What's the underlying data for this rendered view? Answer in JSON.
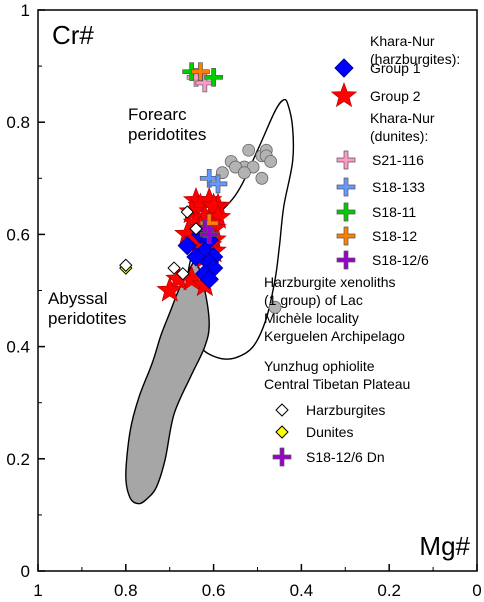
{
  "chart_data": {
    "type": "scatter",
    "title": "",
    "xlabel": "Mg#",
    "ylabel": "Cr#",
    "xlim": [
      1,
      0
    ],
    "ylim": [
      0,
      1
    ],
    "x_ticks": [
      1,
      0.8,
      0.6,
      0.4,
      0.2,
      0
    ],
    "y_ticks": [
      0,
      0.2,
      0.4,
      0.6,
      0.8,
      1
    ],
    "x_tick_labels": [
      "1",
      "0.8",
      "0.6",
      "0.4",
      "0.2",
      "0"
    ],
    "y_tick_labels": [
      "0",
      "0.2",
      "0.4",
      "0.6",
      "0.8",
      "1"
    ],
    "grid": false,
    "legend_position": "right",
    "fields": [
      {
        "name": "Forearc peridotites",
        "label_lines": [
          "Forearc",
          "peridotites"
        ],
        "fill": "#ffffff",
        "outline": [
          [
            0.63,
            0.6
          ],
          [
            0.55,
            0.67
          ],
          [
            0.5,
            0.75
          ],
          [
            0.46,
            0.82
          ],
          [
            0.44,
            0.84
          ],
          [
            0.43,
            0.83
          ],
          [
            0.42,
            0.79
          ],
          [
            0.42,
            0.73
          ],
          [
            0.44,
            0.65
          ],
          [
            0.45,
            0.58
          ],
          [
            0.46,
            0.52
          ],
          [
            0.48,
            0.45
          ],
          [
            0.51,
            0.4
          ],
          [
            0.55,
            0.38
          ],
          [
            0.59,
            0.38
          ],
          [
            0.63,
            0.4
          ],
          [
            0.65,
            0.45
          ],
          [
            0.66,
            0.52
          ]
        ]
      },
      {
        "name": "Abyssal peridotites",
        "label_lines": [
          "Abyssal",
          "peridotites"
        ],
        "fill": "#a6a6a6",
        "outline": [
          [
            0.72,
            0.42
          ],
          [
            0.7,
            0.46
          ],
          [
            0.68,
            0.5
          ],
          [
            0.66,
            0.53
          ],
          [
            0.64,
            0.55
          ],
          [
            0.62,
            0.5
          ],
          [
            0.61,
            0.44
          ],
          [
            0.62,
            0.4
          ],
          [
            0.65,
            0.35
          ],
          [
            0.69,
            0.28
          ],
          [
            0.71,
            0.2
          ],
          [
            0.73,
            0.15
          ],
          [
            0.75,
            0.13
          ],
          [
            0.77,
            0.12
          ],
          [
            0.79,
            0.13
          ],
          [
            0.8,
            0.17
          ],
          [
            0.79,
            0.25
          ],
          [
            0.77,
            0.31
          ],
          [
            0.74,
            0.37
          ]
        ]
      }
    ],
    "legend_groups": [
      {
        "heading": [
          "Khara-Nur",
          "(harzburgites):"
        ],
        "entries": [
          {
            "label": "Group 1",
            "marker": "diamond",
            "color": "#0000ff"
          },
          {
            "label": "Group 2",
            "marker": "star",
            "color": "#ff0000"
          }
        ]
      },
      {
        "heading": [
          "Khara-Nur",
          "(dunites):"
        ],
        "entries": [
          {
            "label": "S21-116",
            "marker": "cross",
            "color": "#ff99cc"
          },
          {
            "label": "S18-133",
            "marker": "cross",
            "color": "#6699ff"
          },
          {
            "label": "S18-11",
            "marker": "cross",
            "color": "#00cc00"
          },
          {
            "label": "S18-12",
            "marker": "cross",
            "color": "#ff8000"
          },
          {
            "label": "S18-12/6",
            "marker": "cross",
            "color": "#9900cc"
          }
        ]
      },
      {
        "heading": [
          "Harzburgite xenoliths",
          "(1 group) of Lac",
          "Michèle locality",
          "Kerguelen Archipelago"
        ],
        "entries": []
      },
      {
        "heading": [
          "Yunzhug ophiolite",
          "Central Tibetan Plateau"
        ],
        "entries": [
          {
            "label": "Harzburgites",
            "marker": "diamond",
            "color": "#ffffff"
          },
          {
            "label": "Dunites",
            "marker": "diamond",
            "color": "#ffff00"
          },
          {
            "label": "S18-12/6 Dn",
            "marker": "cross",
            "color": "#9900cc"
          }
        ]
      }
    ],
    "series": [
      {
        "marker": "circle",
        "color": "#b3b3b3",
        "points": [
          [
            0.52,
            0.75
          ],
          [
            0.49,
            0.74
          ],
          [
            0.48,
            0.75
          ],
          [
            0.48,
            0.74
          ],
          [
            0.47,
            0.73
          ],
          [
            0.53,
            0.72
          ],
          [
            0.56,
            0.73
          ],
          [
            0.55,
            0.72
          ],
          [
            0.51,
            0.72
          ],
          [
            0.53,
            0.71
          ],
          [
            0.58,
            0.71
          ],
          [
            0.49,
            0.7
          ],
          [
            0.46,
            0.47
          ]
        ]
      },
      {
        "marker": "star",
        "color": "#ff0000",
        "points": [
          [
            0.64,
            0.66
          ],
          [
            0.61,
            0.66
          ],
          [
            0.59,
            0.65
          ],
          [
            0.63,
            0.65
          ],
          [
            0.6,
            0.65
          ],
          [
            0.65,
            0.64
          ],
          [
            0.62,
            0.63
          ],
          [
            0.59,
            0.63
          ],
          [
            0.64,
            0.62
          ],
          [
            0.61,
            0.62
          ],
          [
            0.6,
            0.61
          ],
          [
            0.63,
            0.61
          ],
          [
            0.66,
            0.6
          ],
          [
            0.62,
            0.6
          ],
          [
            0.6,
            0.59
          ],
          [
            0.64,
            0.59
          ],
          [
            0.61,
            0.58
          ],
          [
            0.63,
            0.57
          ],
          [
            0.6,
            0.57
          ],
          [
            0.62,
            0.56
          ],
          [
            0.65,
            0.52
          ],
          [
            0.68,
            0.52
          ],
          [
            0.62,
            0.51
          ],
          [
            0.7,
            0.5
          ]
        ]
      },
      {
        "marker": "diamond",
        "color": "#0000ff",
        "points": [
          [
            0.63,
            0.6
          ],
          [
            0.61,
            0.59
          ],
          [
            0.66,
            0.58
          ],
          [
            0.62,
            0.57
          ],
          [
            0.6,
            0.56
          ],
          [
            0.64,
            0.56
          ],
          [
            0.61,
            0.55
          ],
          [
            0.6,
            0.54
          ],
          [
            0.62,
            0.53
          ],
          [
            0.61,
            0.52
          ]
        ]
      },
      {
        "marker": "cross",
        "color": "#ff99cc",
        "points": [
          [
            0.64,
            0.88
          ],
          [
            0.62,
            0.87
          ]
        ]
      },
      {
        "marker": "cross",
        "color": "#6699ff",
        "points": [
          [
            0.61,
            0.7
          ],
          [
            0.59,
            0.69
          ]
        ]
      },
      {
        "marker": "cross",
        "color": "#00cc00",
        "points": [
          [
            0.65,
            0.89
          ],
          [
            0.6,
            0.88
          ]
        ]
      },
      {
        "marker": "cross",
        "color": "#ff8000",
        "points": [
          [
            0.63,
            0.89
          ],
          [
            0.61,
            0.62
          ]
        ]
      },
      {
        "marker": "cross",
        "color": "#9900cc",
        "points": [
          [
            0.62,
            0.61
          ],
          [
            0.61,
            0.6
          ]
        ]
      },
      {
        "marker": "diamond",
        "color": "#ffffff",
        "points": [
          [
            0.66,
            0.64
          ],
          [
            0.64,
            0.61
          ],
          [
            0.69,
            0.54
          ],
          [
            0.67,
            0.53
          ]
        ]
      },
      {
        "marker": "diamond",
        "color": "#ffff00",
        "points": [
          [
            0.8,
            0.54
          ]
        ]
      },
      {
        "marker": "diamond",
        "color": "#ffffff",
        "points": [
          [
            0.8,
            0.545
          ]
        ]
      }
    ]
  }
}
